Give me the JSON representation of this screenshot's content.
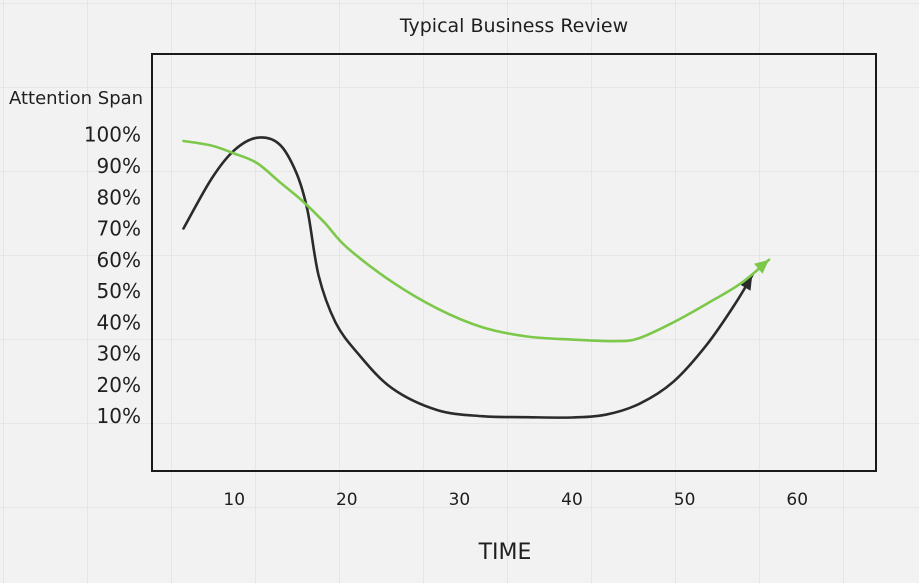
{
  "chart_data": {
    "type": "line",
    "title": "Typical Business Review",
    "ylabel": "Attention Span",
    "xlabel": "TIME",
    "x_ticks": [
      10,
      20,
      30,
      40,
      50,
      60
    ],
    "y_ticks": [
      "100%",
      "90%",
      "80%",
      "70%",
      "60%",
      "50%",
      "40%",
      "30%",
      "20%",
      "10%"
    ],
    "y_tick_values": [
      100,
      90,
      80,
      70,
      60,
      50,
      40,
      30,
      20,
      10
    ],
    "xlim": [
      0,
      65
    ],
    "ylim": [
      -7,
      103
    ],
    "series": [
      {
        "color": "#2b2b2b",
        "arrow": true,
        "x": [
          5.5,
          8,
          10,
          12,
          14,
          15.5,
          16.5,
          17.5,
          19,
          21,
          24,
          28,
          32,
          36,
          40,
          43,
          46,
          49,
          52,
          54.5,
          56
        ],
        "y": [
          70,
          86,
          95,
          99,
          97,
          88,
          76,
          55,
          40,
          30,
          19,
          12,
          10,
          9.7,
          9.6,
          10.5,
          14,
          21,
          33,
          46,
          55
        ]
      },
      {
        "color": "#7cc84a",
        "arrow": true,
        "x": [
          5.5,
          8,
          10,
          12,
          14,
          16,
          18,
          20,
          24,
          28,
          32,
          36,
          40,
          44,
          46,
          49,
          52,
          55,
          57.5
        ],
        "y": [
          98,
          96.5,
          94,
          91,
          85,
          79,
          72,
          64,
          53,
          44.5,
          38.5,
          35.5,
          34.5,
          34,
          35,
          40,
          46,
          52.5,
          60
        ]
      }
    ]
  }
}
